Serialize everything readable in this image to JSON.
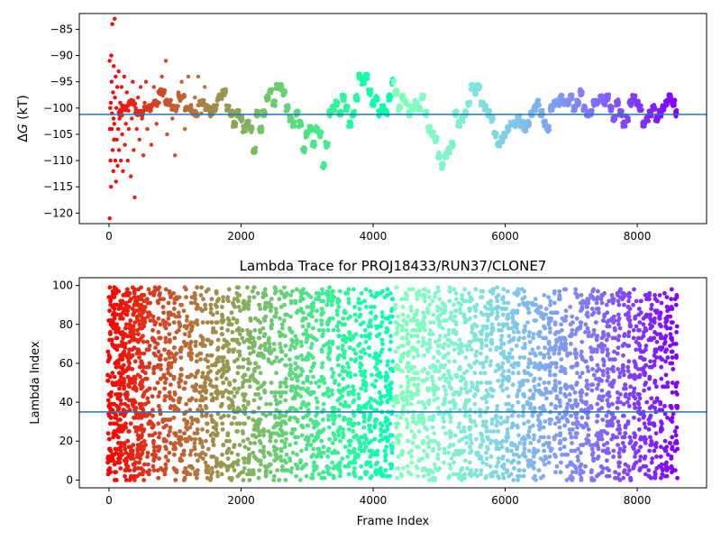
{
  "chart_data": [
    {
      "type": "scatter",
      "title": "",
      "xlabel": "",
      "ylabel": "ΔG (kT)",
      "ylabel_main": "Δ",
      "ylabel_italic": "G",
      "ylabel_rest": " (kT)",
      "xlim": [
        -450,
        9050
      ],
      "ylim": [
        -122,
        -82
      ],
      "xticks": [
        0,
        2000,
        4000,
        6000,
        8000
      ],
      "yticks": [
        -85,
        -90,
        -95,
        -100,
        -105,
        -110,
        -115,
        -120
      ],
      "hline": -101.2,
      "hline_color": "#1f77b4",
      "colormap": "rainbow (early frames red, late frames violet)",
      "x_max": 8600,
      "trace": [
        [
          150,
          -101
        ],
        [
          250,
          -100
        ],
        [
          350,
          -99
        ],
        [
          450,
          -101
        ],
        [
          600,
          -100
        ],
        [
          700,
          -99
        ],
        [
          800,
          -97
        ],
        [
          900,
          -99
        ],
        [
          1000,
          -100
        ],
        [
          1100,
          -98
        ],
        [
          1200,
          -100
        ],
        [
          1300,
          -101
        ],
        [
          1400,
          -99
        ],
        [
          1500,
          -100
        ],
        [
          1550,
          -101
        ],
        [
          1600,
          -100
        ],
        [
          1680,
          -98
        ],
        [
          1750,
          -97
        ],
        [
          1800,
          -100
        ],
        [
          1850,
          -101
        ],
        [
          1900,
          -103
        ],
        [
          1950,
          -101
        ],
        [
          2000,
          -102
        ],
        [
          2050,
          -104
        ],
        [
          2100,
          -103
        ],
        [
          2150,
          -104
        ],
        [
          2200,
          -108
        ],
        [
          2250,
          -101
        ],
        [
          2300,
          -104
        ],
        [
          2350,
          -101
        ],
        [
          2400,
          -98
        ],
        [
          2450,
          -97
        ],
        [
          2500,
          -99
        ],
        [
          2550,
          -96
        ],
        [
          2600,
          -96
        ],
        [
          2650,
          -97
        ],
        [
          2700,
          -100
        ],
        [
          2750,
          -102
        ],
        [
          2800,
          -103
        ],
        [
          2850,
          -101
        ],
        [
          2900,
          -103
        ],
        [
          2950,
          -108
        ],
        [
          3000,
          -105
        ],
        [
          3050,
          -104
        ],
        [
          3100,
          -107
        ],
        [
          3150,
          -104
        ],
        [
          3200,
          -105
        ],
        [
          3250,
          -111
        ],
        [
          3300,
          -107
        ],
        [
          3350,
          -101
        ],
        [
          3400,
          -100
        ],
        [
          3450,
          -99
        ],
        [
          3500,
          -101
        ],
        [
          3550,
          -98
        ],
        [
          3600,
          -100
        ],
        [
          3650,
          -103
        ],
        [
          3700,
          -101
        ],
        [
          3750,
          -98
        ],
        [
          3800,
          -94
        ],
        [
          3850,
          -95
        ],
        [
          3900,
          -94
        ],
        [
          3950,
          -97
        ],
        [
          4000,
          -99
        ],
        [
          4050,
          -98
        ],
        [
          4100,
          -101
        ],
        [
          4150,
          -100
        ],
        [
          4200,
          -101
        ],
        [
          4250,
          -98
        ],
        [
          4300,
          -95
        ],
        [
          4350,
          -97
        ],
        [
          4400,
          -100
        ],
        [
          4450,
          -98
        ],
        [
          4500,
          -99
        ],
        [
          4550,
          -101
        ],
        [
          4600,
          -100
        ],
        [
          4650,
          -99
        ],
        [
          4700,
          -100
        ],
        [
          4750,
          -98
        ],
        [
          4800,
          -101
        ],
        [
          4850,
          -104
        ],
        [
          4900,
          -105
        ],
        [
          4950,
          -106
        ],
        [
          5000,
          -109
        ],
        [
          5050,
          -111
        ],
        [
          5100,
          -109
        ],
        [
          5150,
          -108
        ],
        [
          5200,
          -107
        ],
        [
          5250,
          -101
        ],
        [
          5300,
          -103
        ],
        [
          5350,
          -102
        ],
        [
          5400,
          -101
        ],
        [
          5450,
          -99
        ],
        [
          5500,
          -96
        ],
        [
          5550,
          -97
        ],
        [
          5600,
          -96
        ],
        [
          5650,
          -99
        ],
        [
          5700,
          -100
        ],
        [
          5750,
          -101
        ],
        [
          5800,
          -102
        ],
        [
          5850,
          -105
        ],
        [
          5900,
          -107
        ],
        [
          5950,
          -106
        ],
        [
          6000,
          -105
        ],
        [
          6050,
          -104
        ],
        [
          6100,
          -103
        ],
        [
          6150,
          -103
        ],
        [
          6200,
          -102
        ],
        [
          6250,
          -103
        ],
        [
          6300,
          -104
        ],
        [
          6350,
          -103
        ],
        [
          6400,
          -101
        ],
        [
          6450,
          -100
        ],
        [
          6500,
          -99
        ],
        [
          6550,
          -101
        ],
        [
          6600,
          -103
        ],
        [
          6650,
          -104
        ],
        [
          6700,
          -100
        ],
        [
          6750,
          -99
        ],
        [
          6800,
          -99
        ],
        [
          6850,
          -98
        ],
        [
          6900,
          -99
        ],
        [
          6950,
          -99
        ],
        [
          7000,
          -98
        ],
        [
          7050,
          -100
        ],
        [
          7100,
          -99
        ],
        [
          7150,
          -97
        ],
        [
          7200,
          -100
        ],
        [
          7250,
          -101
        ],
        [
          7300,
          -101
        ],
        [
          7350,
          -99
        ],
        [
          7400,
          -99
        ],
        [
          7450,
          -98
        ],
        [
          7500,
          -99
        ],
        [
          7550,
          -98
        ],
        [
          7600,
          -100
        ],
        [
          7650,
          -102
        ],
        [
          7700,
          -99
        ],
        [
          7750,
          -101
        ],
        [
          7800,
          -103
        ],
        [
          7850,
          -102
        ],
        [
          7900,
          -99
        ],
        [
          7950,
          -98
        ],
        [
          8000,
          -99
        ],
        [
          8050,
          -100
        ],
        [
          8100,
          -103
        ],
        [
          8150,
          -102
        ],
        [
          8200,
          -101
        ],
        [
          8250,
          -100
        ],
        [
          8300,
          -102
        ],
        [
          8350,
          -101
        ],
        [
          8400,
          -100
        ],
        [
          8450,
          -99
        ],
        [
          8500,
          -98
        ],
        [
          8550,
          -99
        ],
        [
          8600,
          -101
        ]
      ],
      "early_scatter": [
        [
          8,
          -91
        ],
        [
          10,
          -121
        ],
        [
          14,
          -104
        ],
        [
          18,
          -100
        ],
        [
          22,
          -110
        ],
        [
          26,
          -99
        ],
        [
          30,
          -115
        ],
        [
          34,
          -90
        ],
        [
          38,
          -95
        ],
        [
          42,
          -104
        ],
        [
          46,
          -101
        ],
        [
          50,
          -84
        ],
        [
          55,
          -108
        ],
        [
          60,
          -97
        ],
        [
          64,
          -112
        ],
        [
          68,
          -102
        ],
        [
          72,
          -92
        ],
        [
          76,
          -106
        ],
        [
          80,
          -103
        ],
        [
          85,
          -83
        ],
        [
          90,
          -98
        ],
        [
          95,
          -110
        ],
        [
          100,
          -94
        ],
        [
          105,
          -114
        ],
        [
          110,
          -100
        ],
        [
          118,
          -106
        ],
        [
          125,
          -96
        ],
        [
          130,
          -111
        ],
        [
          138,
          -104
        ],
        [
          145,
          -93
        ],
        [
          150,
          -108
        ],
        [
          160,
          -102
        ],
        [
          170,
          -99
        ],
        [
          180,
          -110
        ],
        [
          190,
          -96
        ],
        [
          200,
          -105
        ],
        [
          210,
          -112
        ],
        [
          220,
          -100
        ],
        [
          230,
          -94
        ],
        [
          240,
          -107
        ],
        [
          255,
          -103
        ],
        [
          270,
          -97
        ],
        [
          285,
          -110
        ],
        [
          300,
          -104
        ],
        [
          315,
          -99
        ],
        [
          330,
          -113
        ],
        [
          345,
          -102
        ],
        [
          360,
          -95
        ],
        [
          375,
          -108
        ],
        [
          390,
          -117
        ],
        [
          405,
          -100
        ],
        [
          420,
          -104
        ],
        [
          440,
          -98
        ],
        [
          460,
          -106
        ],
        [
          480,
          -96
        ],
        [
          500,
          -102
        ],
        [
          520,
          -109
        ],
        [
          540,
          -99
        ],
        [
          560,
          -95
        ],
        [
          580,
          -104
        ],
        [
          600,
          -100
        ],
        [
          640,
          -107
        ],
        [
          680,
          -96
        ],
        [
          720,
          -103
        ],
        [
          760,
          -99
        ],
        [
          800,
          -94
        ],
        [
          860,
          -91
        ],
        [
          880,
          -105
        ],
        [
          920,
          -99
        ],
        [
          960,
          -102
        ],
        [
          1000,
          -109
        ],
        [
          1050,
          -97
        ],
        [
          1100,
          -95
        ],
        [
          1150,
          -104
        ],
        [
          1200,
          -94
        ],
        [
          1250,
          -100
        ],
        [
          1300,
          -98
        ],
        [
          1350,
          -94
        ],
        [
          1400,
          -101
        ],
        [
          1450,
          -96
        ]
      ]
    },
    {
      "type": "scatter",
      "title": "Lambda Trace for PROJ18433/RUN37/CLONE7",
      "xlabel": "Frame Index",
      "ylabel": "Lambda Index",
      "xlim": [
        -450,
        9050
      ],
      "ylim": [
        -4,
        104
      ],
      "xticks": [
        0,
        2000,
        4000,
        6000,
        8000
      ],
      "yticks": [
        0,
        20,
        40,
        60,
        80,
        100
      ],
      "hline": 35,
      "hline_color": "#1f77b4",
      "colormap": "rainbow (early frames red, late frames violet)",
      "x_max": 8600,
      "lambda_min": 0,
      "lambda_max": 99,
      "columns": [
        [
          0,
          99
        ],
        [
          80,
          99
        ],
        [
          150,
          99
        ],
        [
          230,
          99
        ],
        [
          300,
          99
        ],
        [
          380,
          99
        ],
        [
          460,
          99
        ],
        [
          520,
          99
        ],
        [
          600,
          99
        ],
        [
          680,
          99
        ],
        [
          760,
          99
        ],
        [
          840,
          99
        ],
        [
          920,
          99
        ],
        [
          1000,
          99
        ],
        [
          1080,
          99
        ],
        [
          1160,
          99
        ],
        [
          1240,
          99
        ],
        [
          1320,
          99
        ],
        [
          1400,
          99
        ],
        [
          1480,
          99
        ],
        [
          1560,
          99
        ],
        [
          1640,
          99
        ],
        [
          1720,
          99
        ],
        [
          1800,
          99
        ],
        [
          1880,
          99
        ],
        [
          1960,
          99
        ],
        [
          2040,
          95
        ],
        [
          2120,
          99
        ],
        [
          2200,
          99
        ],
        [
          2280,
          97
        ],
        [
          2360,
          99
        ],
        [
          2440,
          99
        ],
        [
          2520,
          99
        ],
        [
          2600,
          99
        ],
        [
          2680,
          99
        ],
        [
          2760,
          99
        ],
        [
          2840,
          99
        ],
        [
          2920,
          99
        ],
        [
          3000,
          97
        ],
        [
          3080,
          99
        ],
        [
          3160,
          99
        ],
        [
          3240,
          99
        ],
        [
          3320,
          99
        ],
        [
          3400,
          99
        ],
        [
          3480,
          98
        ],
        [
          3560,
          99
        ],
        [
          3640,
          99
        ],
        [
          3720,
          99
        ],
        [
          3800,
          99
        ],
        [
          3880,
          99
        ],
        [
          3960,
          99
        ],
        [
          4040,
          99
        ],
        [
          4120,
          99
        ],
        [
          4200,
          99
        ],
        [
          4280,
          98
        ],
        [
          4360,
          99
        ],
        [
          4440,
          99
        ],
        [
          4520,
          99
        ],
        [
          4600,
          99
        ],
        [
          4680,
          99
        ],
        [
          4760,
          99
        ],
        [
          4840,
          99
        ],
        [
          4920,
          99
        ],
        [
          5000,
          99
        ],
        [
          5080,
          92
        ],
        [
          5160,
          99
        ],
        [
          5240,
          99
        ],
        [
          5320,
          95
        ],
        [
          5400,
          99
        ],
        [
          5480,
          99
        ],
        [
          5560,
          99
        ],
        [
          5640,
          99
        ],
        [
          5720,
          96
        ],
        [
          5800,
          99
        ],
        [
          5880,
          99
        ],
        [
          5960,
          99
        ],
        [
          6040,
          99
        ],
        [
          6120,
          99
        ],
        [
          6200,
          99
        ],
        [
          6280,
          99
        ],
        [
          6360,
          99
        ],
        [
          6440,
          99
        ],
        [
          6520,
          99
        ],
        [
          6600,
          99
        ],
        [
          6680,
          99
        ],
        [
          6760,
          99
        ],
        [
          6840,
          99
        ],
        [
          6920,
          99
        ],
        [
          7000,
          99
        ],
        [
          7080,
          99
        ],
        [
          7160,
          99
        ],
        [
          7240,
          99
        ],
        [
          7320,
          99
        ],
        [
          7400,
          99
        ],
        [
          7480,
          99
        ],
        [
          7560,
          99
        ],
        [
          7640,
          99
        ],
        [
          7720,
          99
        ],
        [
          7800,
          99
        ],
        [
          7880,
          99
        ],
        [
          7960,
          99
        ],
        [
          8040,
          99
        ],
        [
          8120,
          99
        ],
        [
          8200,
          99
        ],
        [
          8280,
          99
        ],
        [
          8360,
          99
        ],
        [
          8440,
          99
        ],
        [
          8520,
          99
        ],
        [
          8600,
          99
        ]
      ]
    }
  ]
}
